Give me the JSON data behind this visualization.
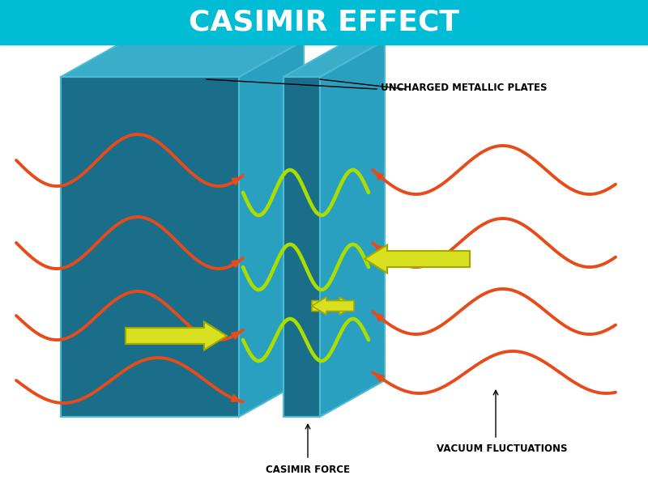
{
  "title": "CASIMIR EFFECT",
  "title_bg": "#00BCD4",
  "title_color": "#FFFFFF",
  "title_fontsize": 26,
  "bg_color": "#FFFFFF",
  "plate_face_color": "#1A6E8A",
  "plate_edge_color": "#4BBAD4",
  "plate_side_color": "#2AA0C0",
  "plate_top_color": "#3AAEC8",
  "wave_outside_color": "#E84B1A",
  "wave_inside_color": "#AADD00",
  "arrow_force_color": "#D8E020",
  "arrow_force_edge": "#A0A800",
  "label_color": "#000000",
  "label_fontsize": 8.5,
  "annotation_label1": "UNCHARGED METALLIC PLATES",
  "annotation_label2": "CASIMIR FORCE",
  "annotation_label3": "VACUUM FLUCTUATIONS"
}
